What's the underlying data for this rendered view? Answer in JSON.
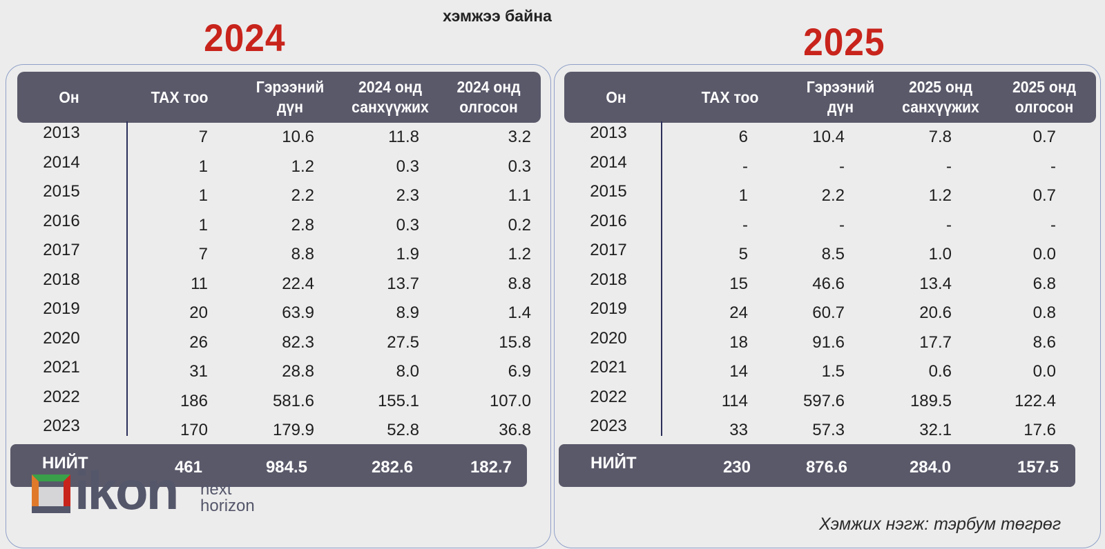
{
  "caption": "хэмжээ байна",
  "left": {
    "year": "2024",
    "headers": [
      "Он",
      "ТАХ тоо",
      "Гэрээний дүн",
      "2024 онд санхүүжих",
      "2024 онд олгосон"
    ],
    "rows": [
      [
        "2013",
        "7",
        "10.6",
        "11.8",
        "3.2"
      ],
      [
        "2014",
        "1",
        "1.2",
        "0.3",
        "0.3"
      ],
      [
        "2015",
        "1",
        "2.2",
        "2.3",
        "1.1"
      ],
      [
        "2016",
        "1",
        "2.8",
        "0.3",
        "0.2"
      ],
      [
        "2017",
        "7",
        "8.8",
        "1.9",
        "1.2"
      ],
      [
        "2018",
        "11",
        "22.4",
        "13.7",
        "8.8"
      ],
      [
        "2019",
        "20",
        "63.9",
        "8.9",
        "1.4"
      ],
      [
        "2020",
        "26",
        "82.3",
        "27.5",
        "15.8"
      ],
      [
        "2021",
        "31",
        "28.8",
        "8.0",
        "6.9"
      ],
      [
        "2022",
        "186",
        "581.6",
        "155.1",
        "107.0"
      ],
      [
        "2023",
        "170",
        "179.9",
        "52.8",
        "36.8"
      ]
    ],
    "total": [
      "НИЙТ",
      "461",
      "984.5",
      "282.6",
      "182.7"
    ]
  },
  "right": {
    "year": "2025",
    "headers": [
      "Он",
      "ТАХ тоо",
      "Гэрээний дүн",
      "2025 онд санхүүжих",
      "2025 онд олгосон"
    ],
    "rows": [
      [
        "2013",
        "6",
        "10.4",
        "7.8",
        "0.7"
      ],
      [
        "2014",
        "-",
        "-",
        "-",
        "-"
      ],
      [
        "2015",
        "1",
        "2.2",
        "1.2",
        "0.7"
      ],
      [
        "2016",
        "-",
        "-",
        "-",
        "-"
      ],
      [
        "2017",
        "5",
        "8.5",
        "1.0",
        "0.0"
      ],
      [
        "2018",
        "15",
        "46.6",
        "13.4",
        "6.8"
      ],
      [
        "2019",
        "24",
        "60.7",
        "20.6",
        "0.8"
      ],
      [
        "2020",
        "18",
        "91.6",
        "17.7",
        "8.6"
      ],
      [
        "2021",
        "14",
        "1.5",
        "0.6",
        "0.0"
      ],
      [
        "2022",
        "114",
        "597.6",
        "189.5",
        "122.4"
      ],
      [
        "2023",
        "33",
        "57.3",
        "32.1",
        "17.6"
      ]
    ],
    "total": [
      "НИЙТ",
      "230",
      "876.6",
      "284.0",
      "157.5"
    ]
  },
  "logo": {
    "brand": "ikon",
    "tagline_line1": "next",
    "tagline_line2": "horizon",
    "colors": {
      "green": "#3aa04a",
      "orange": "#e07a2a",
      "red": "#c8241c",
      "gray": "#54566a"
    },
    "mark_icon": "ikon-square-logo-icon"
  },
  "unit_note": "Хэмжих нэгж: тэрбум төгрөг",
  "colors": {
    "header_bg": "#5a596a",
    "year_title": "#c8241c",
    "panel_border": "#8fa0c8"
  }
}
